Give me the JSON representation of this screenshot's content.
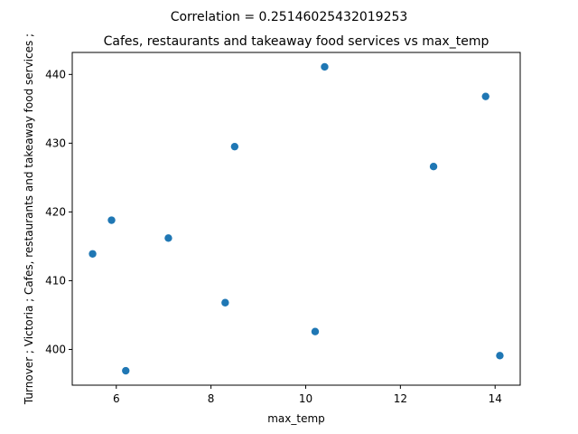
{
  "figure": {
    "suptitle": "Correlation = 0.25146025432019253"
  },
  "chart_data": {
    "type": "scatter",
    "title": "Cafes, restaurants and takeaway food services vs max_temp",
    "xlabel": "max_temp",
    "ylabel": "Turnover ;  Victoria ;  Cafes, restaurants and takeaway food services ;",
    "xlim": [
      5.07,
      14.53
    ],
    "ylim": [
      394.8,
      443.2
    ],
    "xticks": [
      6,
      8,
      10,
      12,
      14
    ],
    "yticks": [
      400,
      410,
      420,
      430,
      440
    ],
    "grid": false,
    "marker_color": "#1f77b4",
    "points": [
      {
        "x": 5.5,
        "y": 413.9
      },
      {
        "x": 5.9,
        "y": 418.8
      },
      {
        "x": 6.2,
        "y": 396.9
      },
      {
        "x": 7.1,
        "y": 416.2
      },
      {
        "x": 8.3,
        "y": 406.8
      },
      {
        "x": 8.5,
        "y": 429.5
      },
      {
        "x": 10.2,
        "y": 402.6
      },
      {
        "x": 10.4,
        "y": 441.1
      },
      {
        "x": 12.7,
        "y": 426.6
      },
      {
        "x": 13.8,
        "y": 436.8
      },
      {
        "x": 14.1,
        "y": 399.1
      }
    ]
  }
}
